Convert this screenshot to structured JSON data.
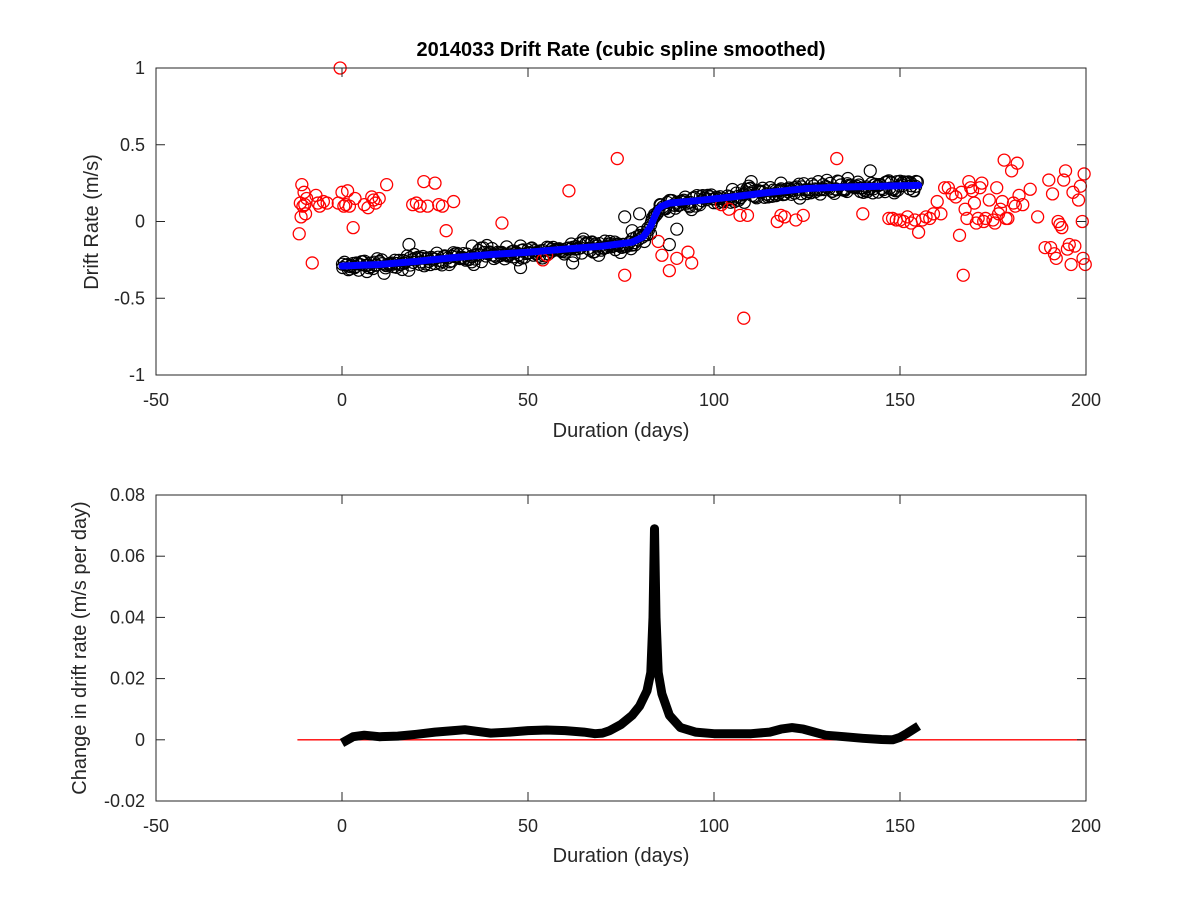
{
  "figure": {
    "title": "2014033  Drift Rate (cubic spline smoothed)"
  },
  "chart_data": [
    {
      "type": "scatter",
      "title": "2014033  Drift Rate (cubic spline smoothed)",
      "xlabel": "Duration (days)",
      "ylabel": "Drift Rate  (m/s)",
      "xlim": [
        -50,
        200
      ],
      "ylim": [
        -1,
        1
      ],
      "x_ticks": [
        -50,
        0,
        50,
        100,
        150,
        200
      ],
      "y_ticks": [
        -1,
        -0.5,
        0,
        0.5,
        1
      ],
      "x_tick_labels": [
        "-50",
        "0",
        "50",
        "100",
        "150",
        "200"
      ],
      "y_tick_labels": [
        "-1",
        "-0.5",
        "0",
        "0.5",
        "1"
      ],
      "grid": false,
      "legend": "none",
      "series": [
        {
          "style": "circle-open",
          "color": "#ff0000",
          "points": [
            [
              -11.5,
              -0.08
            ],
            [
              -11.2,
              0.12
            ],
            [
              -11,
              0.03
            ],
            [
              -10.8,
              0.24
            ],
            [
              -10.5,
              0.1
            ],
            [
              -10.2,
              0.19
            ],
            [
              -10,
              0.11
            ],
            [
              -9.8,
              0.05
            ],
            [
              -9.5,
              0.15
            ],
            [
              -8,
              -0.27
            ],
            [
              -7,
              0.17
            ],
            [
              -6.5,
              0.12
            ],
            [
              -6,
              0.1
            ],
            [
              -5,
              0.13
            ],
            [
              -4,
              0.12
            ],
            [
              -1,
              0.12
            ],
            [
              -0.5,
              1.0
            ],
            [
              0,
              0.19
            ],
            [
              0.5,
              0.1
            ],
            [
              1,
              0.11
            ],
            [
              1.5,
              0.2
            ],
            [
              2,
              0.1
            ],
            [
              3,
              -0.04
            ],
            [
              3.5,
              0.15
            ],
            [
              6,
              0.11
            ],
            [
              7,
              0.09
            ],
            [
              8,
              0.16
            ],
            [
              8.5,
              0.14
            ],
            [
              9,
              0.12
            ],
            [
              10,
              0.15
            ],
            [
              12,
              0.24
            ],
            [
              19,
              0.11
            ],
            [
              20,
              0.12
            ],
            [
              21,
              0.1
            ],
            [
              22,
              0.26
            ],
            [
              23,
              0.1
            ],
            [
              25,
              0.25
            ],
            [
              26,
              0.11
            ],
            [
              27,
              0.1
            ],
            [
              28,
              -0.06
            ],
            [
              30,
              0.13
            ],
            [
              43,
              -0.01
            ],
            [
              54,
              -0.25
            ],
            [
              55,
              -0.22
            ],
            [
              61,
              0.2
            ],
            [
              74,
              0.41
            ],
            [
              76,
              -0.35
            ],
            [
              85,
              -0.13
            ],
            [
              86,
              -0.22
            ],
            [
              88,
              -0.32
            ],
            [
              90,
              -0.24
            ],
            [
              93,
              -0.2
            ],
            [
              94,
              -0.27
            ],
            [
              102,
              0.11
            ],
            [
              104,
              0.08
            ],
            [
              107,
              0.04
            ],
            [
              108,
              -0.63
            ],
            [
              109,
              0.04
            ],
            [
              117,
              0.0
            ],
            [
              118,
              0.04
            ],
            [
              119,
              0.03
            ],
            [
              122,
              0.01
            ],
            [
              124,
              0.04
            ],
            [
              133,
              0.41
            ],
            [
              140,
              0.05
            ],
            [
              147,
              0.02
            ],
            [
              148,
              0.02
            ],
            [
              149,
              0.01
            ],
            [
              150,
              0.01
            ],
            [
              151,
              0.0
            ],
            [
              152,
              0.03
            ],
            [
              153,
              -0.01
            ],
            [
              154,
              0.01
            ],
            [
              155,
              -0.07
            ],
            [
              156,
              0.01
            ],
            [
              157,
              0.03
            ],
            [
              158,
              0.02
            ],
            [
              159,
              0.05
            ],
            [
              160,
              0.13
            ],
            [
              161,
              0.05
            ],
            [
              162,
              0.22
            ],
            [
              163,
              0.22
            ],
            [
              164,
              0.18
            ],
            [
              165,
              0.16
            ],
            [
              166,
              -0.09
            ],
            [
              166.5,
              0.19
            ],
            [
              167,
              -0.35
            ],
            [
              167.5,
              0.08
            ],
            [
              168,
              0.02
            ],
            [
              168.5,
              0.26
            ],
            [
              169,
              0.22
            ],
            [
              169.5,
              0.2
            ],
            [
              170,
              0.12
            ],
            [
              170.5,
              -0.01
            ],
            [
              171,
              0.02
            ],
            [
              171.5,
              0.22
            ],
            [
              172,
              0.25
            ],
            [
              172.5,
              0.0
            ],
            [
              173,
              0.02
            ],
            [
              174,
              0.14
            ],
            [
              175,
              0.01
            ],
            [
              175.5,
              -0.01
            ],
            [
              176,
              0.22
            ],
            [
              176.5,
              0.05
            ],
            [
              177,
              0.08
            ],
            [
              177.5,
              0.13
            ],
            [
              178,
              0.4
            ],
            [
              178.5,
              0.02
            ],
            [
              179,
              0.02
            ],
            [
              180,
              0.33
            ],
            [
              180.5,
              0.12
            ],
            [
              181,
              0.1
            ],
            [
              181.5,
              0.38
            ],
            [
              182,
              0.17
            ],
            [
              183,
              0.11
            ],
            [
              185,
              0.21
            ],
            [
              187,
              0.03
            ],
            [
              189,
              -0.17
            ],
            [
              190,
              0.27
            ],
            [
              190.5,
              -0.17
            ],
            [
              191,
              0.18
            ],
            [
              191.5,
              -0.21
            ],
            [
              192,
              -0.24
            ],
            [
              192.5,
              0.0
            ],
            [
              193,
              -0.02
            ],
            [
              193.5,
              -0.04
            ],
            [
              194,
              0.27
            ],
            [
              194.5,
              0.33
            ],
            [
              195,
              -0.18
            ],
            [
              195.5,
              -0.15
            ],
            [
              196,
              -0.28
            ],
            [
              196.5,
              0.19
            ],
            [
              197,
              -0.16
            ],
            [
              198,
              0.14
            ],
            [
              198.5,
              0.23
            ],
            [
              199,
              0.0
            ],
            [
              199.2,
              -0.24
            ],
            [
              199.5,
              0.31
            ],
            [
              199.8,
              -0.28
            ]
          ]
        },
        {
          "style": "circle-open",
          "color": "#000000",
          "note_equals": "dense cloud of accepted observations around the blue smoothed curve",
          "jitter_seed": 7,
          "x_range": [
            0,
            155
          ],
          "spacing": 0.33,
          "extra_points": [
            [
              18,
              -0.15
            ],
            [
              35,
              -0.16
            ],
            [
              48,
              -0.3
            ],
            [
              62,
              -0.27
            ],
            [
              69,
              -0.22
            ],
            [
              72,
              -0.13
            ],
            [
              76,
              0.03
            ],
            [
              78,
              -0.06
            ],
            [
              80,
              0.05
            ],
            [
              83,
              -0.02
            ],
            [
              88,
              -0.15
            ],
            [
              90,
              -0.05
            ],
            [
              108,
              0.18
            ],
            [
              110,
              0.26
            ],
            [
              118,
              0.25
            ],
            [
              136,
              0.28
            ],
            [
              142,
              0.33
            ]
          ]
        },
        {
          "style": "line",
          "color": "#0000ff",
          "x": [
            0,
            10,
            20,
            30,
            40,
            50,
            60,
            70,
            78,
            81,
            83,
            84,
            85,
            86,
            88,
            95,
            105,
            115,
            125,
            135,
            145,
            155
          ],
          "values": [
            -0.29,
            -0.28,
            -0.26,
            -0.235,
            -0.215,
            -0.2,
            -0.18,
            -0.16,
            -0.135,
            -0.1,
            -0.03,
            0.03,
            0.08,
            0.1,
            0.12,
            0.135,
            0.16,
            0.19,
            0.215,
            0.225,
            0.23,
            0.235
          ]
        }
      ]
    },
    {
      "type": "line",
      "xlabel": "Duration (days)",
      "ylabel": "Change in drift rate (m/s per day)",
      "xlim": [
        -50,
        200
      ],
      "ylim": [
        -0.02,
        0.08
      ],
      "x_ticks": [
        -50,
        0,
        50,
        100,
        150,
        200
      ],
      "y_ticks": [
        -0.02,
        0,
        0.02,
        0.04,
        0.06,
        0.08
      ],
      "x_tick_labels": [
        "-50",
        "0",
        "50",
        "100",
        "150",
        "200"
      ],
      "y_tick_labels": [
        "-0.02",
        "0",
        "0.02",
        "0.04",
        "0.06",
        "0.08"
      ],
      "grid": false,
      "legend": "none",
      "series": [
        {
          "color": "#000000",
          "style": "line-thick",
          "x": [
            0,
            3,
            6,
            10,
            15,
            20,
            25,
            30,
            33,
            36,
            40,
            45,
            50,
            55,
            60,
            65,
            68,
            70,
            72,
            75,
            78,
            80,
            82,
            83,
            83.6,
            84,
            84.4,
            85,
            86,
            88,
            91,
            95,
            100,
            105,
            110,
            115,
            118,
            121,
            124,
            127,
            130,
            135,
            140,
            145,
            148,
            150,
            152,
            155
          ],
          "values": [
            -0.001,
            0.001,
            0.0015,
            0.001,
            0.0012,
            0.0018,
            0.0025,
            0.003,
            0.0033,
            0.0028,
            0.0022,
            0.0025,
            0.003,
            0.0032,
            0.003,
            0.0025,
            0.002,
            0.0022,
            0.003,
            0.005,
            0.008,
            0.011,
            0.016,
            0.022,
            0.04,
            0.069,
            0.04,
            0.022,
            0.015,
            0.008,
            0.004,
            0.0025,
            0.002,
            0.002,
            0.002,
            0.0025,
            0.0035,
            0.004,
            0.0035,
            0.0025,
            0.0015,
            0.001,
            0.0005,
            0.0001,
            0.0,
            0.0008,
            0.0022,
            0.0045
          ]
        },
        {
          "color": "#ff0000",
          "style": "line-thin",
          "x": [
            -12,
            200
          ],
          "values": [
            0,
            0
          ]
        }
      ]
    }
  ]
}
